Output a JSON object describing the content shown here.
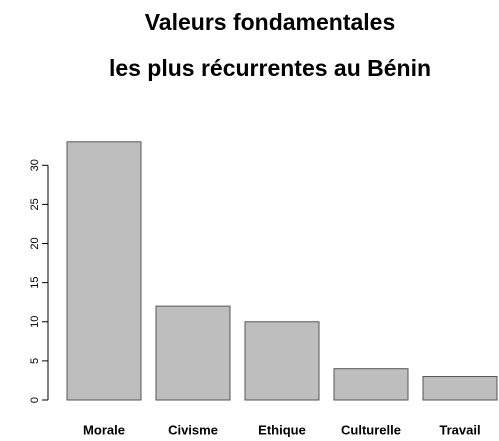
{
  "chart_data": {
    "type": "bar",
    "title": [
      "Valeurs fondamentales",
      "les plus récurrentes au Bénin"
    ],
    "categories": [
      "Morale",
      "Civisme",
      "Ethique",
      "Culturelle",
      "Travail"
    ],
    "values": [
      33,
      12,
      10,
      4,
      3
    ],
    "color": "#bebebe",
    "ylim": [
      0,
      34
    ],
    "yticks": [
      0,
      5,
      10,
      15,
      20,
      25,
      30
    ]
  }
}
